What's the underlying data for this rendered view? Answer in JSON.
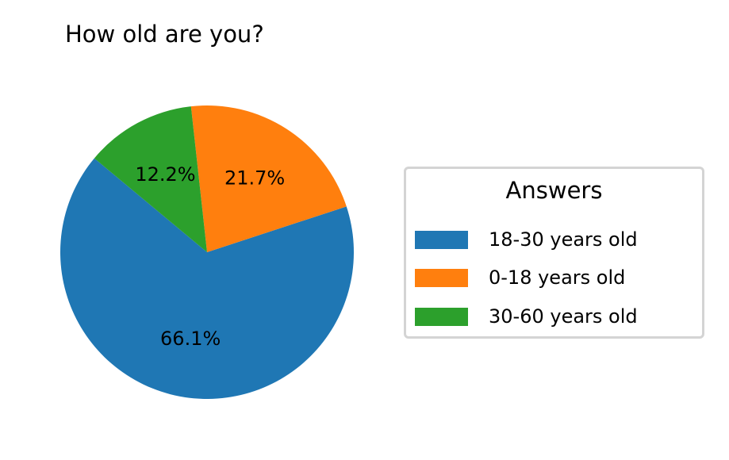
{
  "chart_data": {
    "type": "pie",
    "title": "How old are you?",
    "slices": [
      {
        "label": "18-30 years old",
        "value": 66.1,
        "pct_label": "66.1%",
        "color": "#1f77b4"
      },
      {
        "label": "0-18 years old",
        "value": 21.7,
        "pct_label": "21.7%",
        "color": "#ff7f0e"
      },
      {
        "label": "30-60 years old",
        "value": 12.2,
        "pct_label": "12.2%",
        "color": "#2ca02c"
      }
    ],
    "legend": {
      "title": "Answers",
      "placement": "right"
    }
  }
}
